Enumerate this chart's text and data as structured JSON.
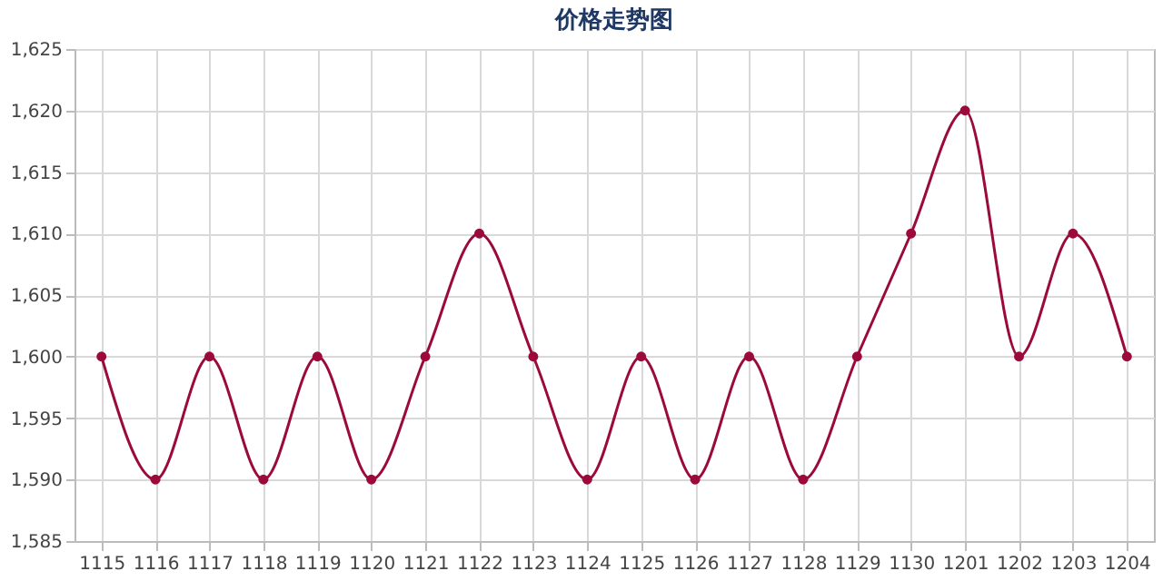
{
  "chart_data": {
    "type": "line",
    "title": "价格走势图",
    "categories": [
      "1115",
      "1116",
      "1117",
      "1118",
      "1119",
      "1120",
      "1121",
      "1122",
      "1123",
      "1124",
      "1125",
      "1126",
      "1127",
      "1128",
      "1129",
      "1130",
      "1201",
      "1202",
      "1203",
      "1204"
    ],
    "series": [
      {
        "color": "#9b0a3a",
        "values": [
          1600,
          1590,
          1600,
          1590,
          1600,
          1590,
          1600,
          1610,
          1600,
          1590,
          1600,
          1590,
          1600,
          1590,
          1600,
          1610,
          1620,
          1600,
          1610,
          1600
        ]
      }
    ],
    "ylim": [
      1585,
      1625
    ],
    "yticks": [
      {
        "value": 1585,
        "label": "1,585"
      },
      {
        "value": 1590,
        "label": "1,590"
      },
      {
        "value": 1595,
        "label": "1,595"
      },
      {
        "value": 1600,
        "label": "1,600"
      },
      {
        "value": 1605,
        "label": "1,605"
      },
      {
        "value": 1610,
        "label": "1,610"
      },
      {
        "value": 1615,
        "label": "1,615"
      },
      {
        "value": 1620,
        "label": "1,620"
      },
      {
        "value": 1625,
        "label": "1,625"
      }
    ],
    "grid": true,
    "marker": "circle",
    "line_style": "solid"
  }
}
